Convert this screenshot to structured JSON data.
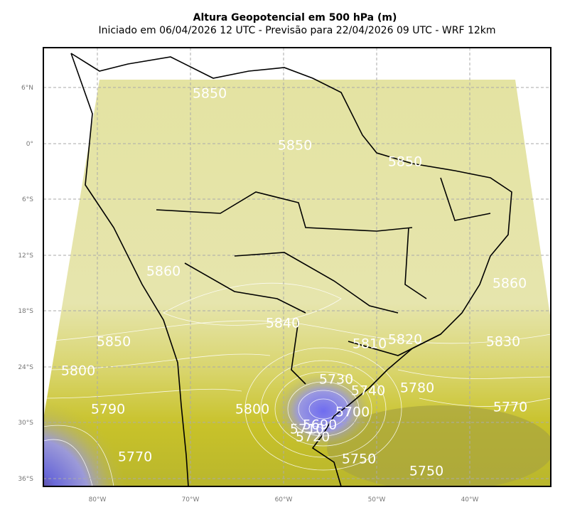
{
  "header": {
    "title": "Altura Geopotencial em 500 hPa (m)",
    "subtitle": "Iniciado em 06/04/2026 12 UTC - Previsão para 22/04/2026 09 UTC - WRF 12km"
  },
  "map": {
    "lat_ticks": [
      "6°N",
      "0°",
      "6°S",
      "12°S",
      "18°S",
      "24°S",
      "30°S",
      "36°S"
    ],
    "lon_ticks": [
      "80°W",
      "70°W",
      "60°W",
      "50°W",
      "40°W"
    ],
    "contour_labels": [
      "5850",
      "5850",
      "5850",
      "5860",
      "5860",
      "5840",
      "5850",
      "5810",
      "5820",
      "5830",
      "5800",
      "5730",
      "5740",
      "5780",
      "5790",
      "5800",
      "5700",
      "5770",
      "5690",
      "5710",
      "5720",
      "5750",
      "5750",
      "5770"
    ]
  }
}
